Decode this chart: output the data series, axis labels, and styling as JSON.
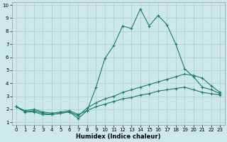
{
  "xlabel": "Humidex (Indice chaleur)",
  "bg_color": "#cce8e8",
  "line_color": "#1a7a6e",
  "grid_color": "#aacfcf",
  "xlim_min": -0.5,
  "xlim_max": 23.5,
  "ylim_min": 0.8,
  "ylim_max": 10.2,
  "xticks": [
    0,
    1,
    2,
    3,
    4,
    5,
    6,
    7,
    8,
    9,
    10,
    11,
    12,
    13,
    14,
    15,
    16,
    17,
    18,
    19,
    20,
    21,
    22,
    23
  ],
  "yticks": [
    1,
    2,
    3,
    4,
    5,
    6,
    7,
    8,
    9,
    10
  ],
  "line1_x": [
    0,
    1,
    2,
    3,
    4,
    5,
    6,
    7,
    8,
    9,
    10,
    11,
    12,
    13,
    14,
    15,
    16,
    17,
    18,
    19,
    20,
    21,
    22,
    23
  ],
  "line1_y": [
    2.2,
    1.8,
    1.8,
    1.6,
    1.6,
    1.7,
    1.8,
    1.3,
    1.9,
    3.7,
    5.9,
    6.9,
    8.4,
    8.2,
    9.7,
    8.4,
    9.2,
    8.5,
    7.0,
    5.1,
    4.5,
    3.7,
    3.5,
    3.2
  ],
  "line2_x": [
    0,
    1,
    2,
    3,
    4,
    5,
    6,
    7,
    8,
    9,
    10,
    11,
    12,
    13,
    14,
    15,
    16,
    17,
    18,
    19,
    20,
    21,
    22,
    23
  ],
  "line2_y": [
    2.2,
    1.8,
    1.9,
    1.7,
    1.6,
    1.7,
    1.8,
    1.5,
    2.1,
    2.5,
    2.8,
    3.0,
    3.3,
    3.5,
    3.7,
    3.9,
    4.1,
    4.3,
    4.5,
    4.7,
    4.6,
    4.4,
    3.8,
    3.3
  ],
  "line3_x": [
    0,
    1,
    2,
    3,
    4,
    5,
    6,
    7,
    8,
    9,
    10,
    11,
    12,
    13,
    14,
    15,
    16,
    17,
    18,
    19,
    20,
    21,
    22,
    23
  ],
  "line3_y": [
    2.2,
    1.9,
    2.0,
    1.8,
    1.7,
    1.8,
    1.9,
    1.6,
    1.9,
    2.2,
    2.4,
    2.6,
    2.8,
    2.9,
    3.1,
    3.2,
    3.4,
    3.5,
    3.6,
    3.7,
    3.5,
    3.3,
    3.2,
    3.1
  ],
  "tick_fontsize": 5.0,
  "xlabel_fontsize": 6.0,
  "lw": 0.8,
  "marker_size": 3.0
}
